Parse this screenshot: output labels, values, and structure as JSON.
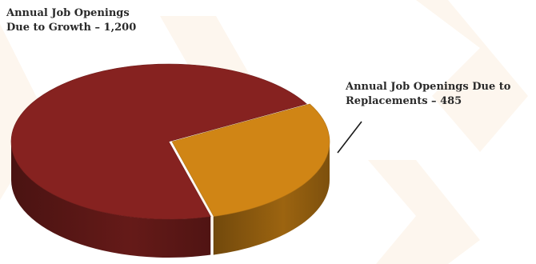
{
  "chart_data": {
    "type": "pie",
    "slices": [
      {
        "label": "Annual Job Openings Due to Growth",
        "value": 1200,
        "color": "#862220"
      },
      {
        "label": "Annual Job Openings Due to Replacements",
        "value": 485,
        "color": "#d08515"
      }
    ],
    "annotations": [
      "Annual Job Openings Due to Growth – 1,200",
      "Annual Job Openings Due to Replacements – 485"
    ],
    "style": "3d"
  }
}
